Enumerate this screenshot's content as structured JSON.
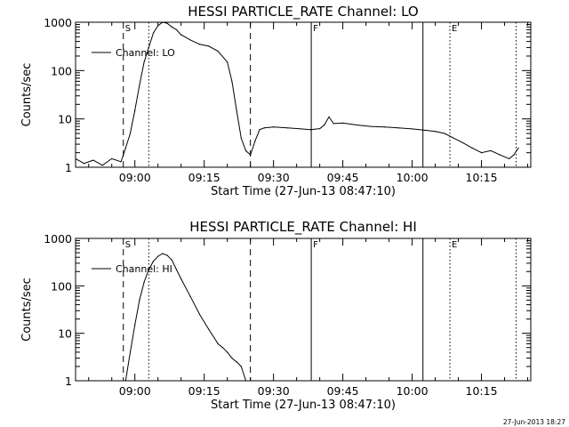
{
  "footer": {
    "timestamp": "27-Jun-2013 18:27"
  },
  "chart_data": [
    {
      "type": "line",
      "title": "HESSI PARTICLE_RATE Channel: LO",
      "xlabel": "Start Time (27-Jun-13 08:47:10)",
      "ylabel": "Counts/sec",
      "yscale": "log",
      "ylim": [
        1,
        1000
      ],
      "xlim": [
        "08:47:10",
        "10:25:40"
      ],
      "yticks": [
        "1",
        "10",
        "100",
        "1000"
      ],
      "xticks": [
        "09:00",
        "09:15",
        "09:30",
        "09:45",
        "10:00",
        "10:15"
      ],
      "legend": {
        "entries": [
          "Channel: LO"
        ],
        "placement": "top-left"
      },
      "markers": [
        {
          "time": "08:57:30",
          "style": "dashed",
          "label": "S"
        },
        {
          "time": "09:03:00",
          "style": "dotted",
          "label": ""
        },
        {
          "time": "09:25:00",
          "style": "dashed",
          "label": ""
        },
        {
          "time": "09:38:10",
          "style": "solid",
          "label": "F"
        },
        {
          "time": "10:02:20",
          "style": "solid",
          "label": ""
        },
        {
          "time": "10:08:10",
          "style": "dotted",
          "label": "E"
        },
        {
          "time": "10:22:30",
          "style": "dotted",
          "label": ""
        }
      ],
      "series": [
        {
          "name": "Channel: LO",
          "x": [
            "08:47:10",
            "08:49:00",
            "08:51:00",
            "08:53:00",
            "08:55:00",
            "08:57:00",
            "08:58:00",
            "08:59:00",
            "09:00:00",
            "09:01:00",
            "09:02:00",
            "09:03:00",
            "09:04:00",
            "09:05:00",
            "09:06:00",
            "09:07:00",
            "09:08:00",
            "09:09:00",
            "09:10:00",
            "09:12:00",
            "09:14:00",
            "09:16:00",
            "09:18:00",
            "09:20:00",
            "09:21:00",
            "09:22:00",
            "09:23:00",
            "09:24:00",
            "09:25:00",
            "09:26:00",
            "09:27:00",
            "09:28:00",
            "09:30:00",
            "09:33:00",
            "09:36:00",
            "09:38:00",
            "09:40:00",
            "09:41:00",
            "09:42:00",
            "09:43:00",
            "09:45:00",
            "09:48:00",
            "09:51:00",
            "09:54:00",
            "09:57:00",
            "10:00:00",
            "10:03:00",
            "10:05:00",
            "10:07:00",
            "10:09:00",
            "10:11:00",
            "10:13:00",
            "10:15:00",
            "10:17:00",
            "10:19:00",
            "10:21:00",
            "10:22:00",
            "10:23:00"
          ],
          "values": [
            1.5,
            1.2,
            1.4,
            1.1,
            1.5,
            1.3,
            2.5,
            5,
            15,
            50,
            150,
            300,
            600,
            850,
            1000,
            950,
            800,
            700,
            550,
            430,
            350,
            320,
            250,
            150,
            60,
            15,
            4,
            2.2,
            1.8,
            3.5,
            6,
            6.5,
            6.8,
            6.5,
            6.2,
            6,
            6.3,
            7.5,
            11,
            8,
            8.2,
            7.5,
            7,
            6.8,
            6.5,
            6.2,
            5.8,
            5.5,
            5,
            4,
            3.2,
            2.5,
            2,
            2.2,
            1.8,
            1.5,
            1.8,
            2.5
          ]
        }
      ]
    },
    {
      "type": "line",
      "title": "HESSI PARTICLE_RATE Channel: HI",
      "xlabel": "Start Time (27-Jun-13 08:47:10)",
      "ylabel": "Counts/sec",
      "yscale": "log",
      "ylim": [
        1,
        1000
      ],
      "xlim": [
        "08:47:10",
        "10:25:40"
      ],
      "yticks": [
        "1",
        "10",
        "100",
        "1000"
      ],
      "xticks": [
        "09:00",
        "09:15",
        "09:30",
        "09:45",
        "10:00",
        "10:15"
      ],
      "legend": {
        "entries": [
          "Channel: HI"
        ],
        "placement": "top-left"
      },
      "markers": [
        {
          "time": "08:57:30",
          "style": "dashed",
          "label": "S"
        },
        {
          "time": "09:03:00",
          "style": "dotted",
          "label": ""
        },
        {
          "time": "09:25:00",
          "style": "dashed",
          "label": ""
        },
        {
          "time": "09:38:10",
          "style": "solid",
          "label": "F"
        },
        {
          "time": "10:02:20",
          "style": "solid",
          "label": ""
        },
        {
          "time": "10:08:10",
          "style": "dotted",
          "label": "E"
        },
        {
          "time": "10:22:30",
          "style": "dotted",
          "label": ""
        }
      ],
      "series": [
        {
          "name": "Channel: HI",
          "x": [
            "08:58:00",
            "08:59:00",
            "09:00:00",
            "09:01:00",
            "09:02:00",
            "09:03:00",
            "09:04:00",
            "09:05:00",
            "09:06:00",
            "09:07:00",
            "09:08:00",
            "09:09:00",
            "09:10:00",
            "09:12:00",
            "09:14:00",
            "09:16:00",
            "09:18:00",
            "09:19:00",
            "09:20:00",
            "09:21:00",
            "09:22:00",
            "09:23:00",
            "09:24:00"
          ],
          "values": [
            1,
            4,
            15,
            50,
            120,
            220,
            330,
            420,
            480,
            440,
            350,
            220,
            140,
            60,
            25,
            12,
            6,
            5,
            4,
            3,
            2.5,
            2,
            1
          ]
        }
      ]
    }
  ]
}
